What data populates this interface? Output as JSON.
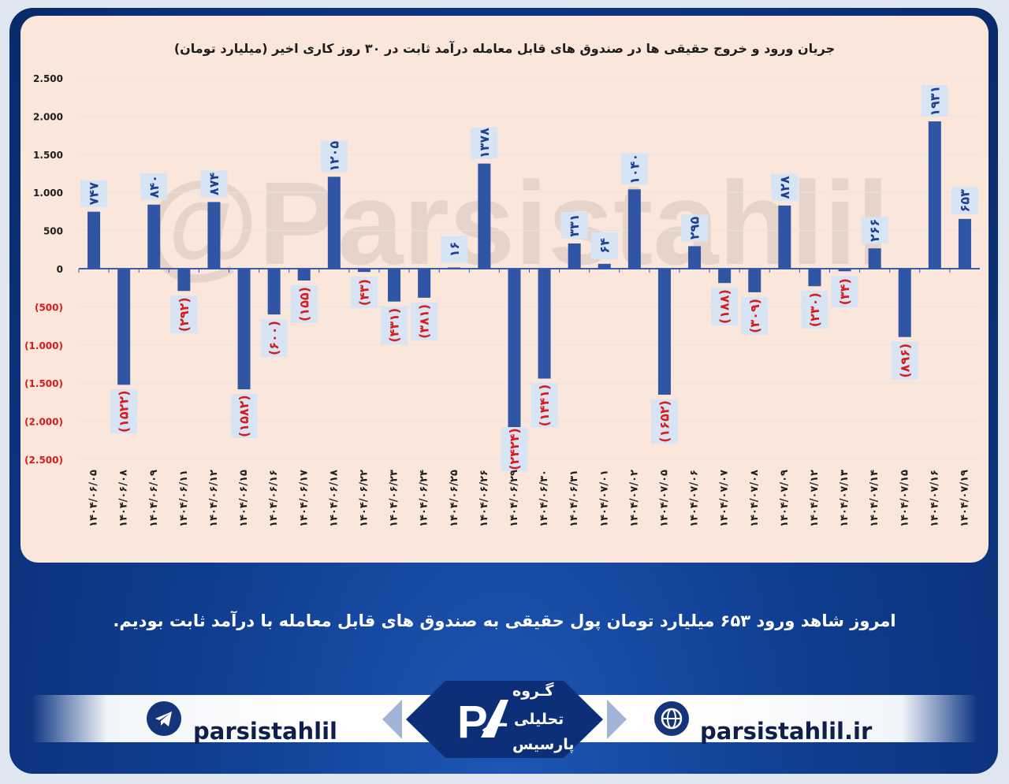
{
  "chart_data": {
    "type": "bar",
    "title": "جریان ورود و خروج حقیقی ها در صندوق های قابل معامله درآمد ثابت در ۳۰ روز کاری اخیر (میلیارد تومان)",
    "categories": [
      "۱۴۰۴/۰۶/۰۵",
      "۱۴۰۴/۰۶/۰۸",
      "۱۴۰۴/۰۶/۰۹",
      "۱۴۰۴/۰۶/۱۱",
      "۱۴۰۴/۰۶/۱۲",
      "۱۴۰۴/۰۶/۱۵",
      "۱۴۰۴/۰۶/۱۶",
      "۱۴۰۴/۰۶/۱۷",
      "۱۴۰۴/۰۶/۱۸",
      "۱۴۰۴/۰۶/۲۲",
      "۱۴۰۴/۰۶/۲۳",
      "۱۴۰۴/۰۶/۲۴",
      "۱۴۰۴/۰۶/۲۵",
      "۱۴۰۴/۰۶/۲۶",
      "۱۴۰۴/۰۶/۲۹",
      "۱۴۰۴/۰۶/۳۰",
      "۱۴۰۴/۰۶/۳۱",
      "۱۴۰۴/۰۷/۰۱",
      "۱۴۰۴/۰۷/۰۲",
      "۱۴۰۴/۰۷/۰۵",
      "۱۴۰۴/۰۷/۰۶",
      "۱۴۰۴/۰۷/۰۷",
      "۱۴۰۴/۰۷/۰۸",
      "۱۴۰۴/۰۷/۰۹",
      "۱۴۰۴/۰۷/۱۲",
      "۱۴۰۴/۰۷/۱۳",
      "۱۴۰۴/۰۷/۱۴",
      "۱۴۰۴/۰۷/۱۵",
      "۱۴۰۴/۰۷/۱۶",
      "۱۴۰۴/۰۷/۱۹"
    ],
    "values": [
      747,
      -1522,
      840,
      -292,
      874,
      -1582,
      -600,
      -155,
      1205,
      -43,
      -431,
      -381,
      16,
      1378,
      -2424,
      -1441,
      331,
      64,
      1040,
      -1652,
      295,
      -188,
      -309,
      828,
      -230,
      -34,
      266,
      -896,
      1931,
      653
    ],
    "value_labels": [
      "۷۴۷",
      "(۱۵۲۲)",
      "۸۴۰",
      "(۲۹۲)",
      "۸۷۴",
      "(۱۵۸۲)",
      "(۶۰۰)",
      "(۱۵۵)",
      "۱۲۰۵",
      "(۴۳)",
      "(۴۳۱)",
      "(۳۸۱)",
      "۱۶",
      "۱۳۷۸",
      "(۲۴۲۴)",
      "(۱۴۴۱)",
      "۳۳۱",
      "۶۴",
      "۱۰۴۰",
      "(۱۶۵۲)",
      "۲۹۵",
      "(۱۸۸)",
      "(۳۰۹)",
      "۸۲۸",
      "(۲۳۰)",
      "(۳۴)",
      "۲۶۶",
      "(۸۹۶)",
      "۱۹۳۱",
      "۶۵۳"
    ],
    "ylim": [
      -2500,
      2500
    ],
    "yticks": [
      2500,
      2000,
      1500,
      1000,
      500,
      0,
      -500,
      -1000,
      -1500,
      -2000,
      -2500
    ],
    "ytick_labels": [
      "2.500",
      "2.000",
      "1.500",
      "1.000",
      "500",
      "0",
      "(500)",
      "(1.000)",
      "(1.500)",
      "(2.000)",
      "(2.500)"
    ],
    "grid": true,
    "legend": "none",
    "xlabel": "",
    "ylabel": "",
    "watermark": "@Parsistahlil"
  },
  "colors": {
    "bar": "#2f55a4",
    "label_box": "#d7e4f4",
    "positive_label": "#1f3f8f",
    "negative_label": "#d81c1c",
    "panel": "#fbe6dc",
    "grid": "#e4e4e4"
  },
  "caption": "امروز شاهد ورود ۶۵۳ میلیارد تومان پول حقیقی به صندوق های قابل معامله با درآمد ثابت بودیم.",
  "footer": {
    "telegram_handle": "parsistahlil",
    "website": "parsistahlil.ir",
    "brand": [
      "گـروه",
      "تحلیلی",
      "پارسیس"
    ],
    "telegram_icon": "telegram-icon",
    "globe_icon": "globe-icon"
  }
}
